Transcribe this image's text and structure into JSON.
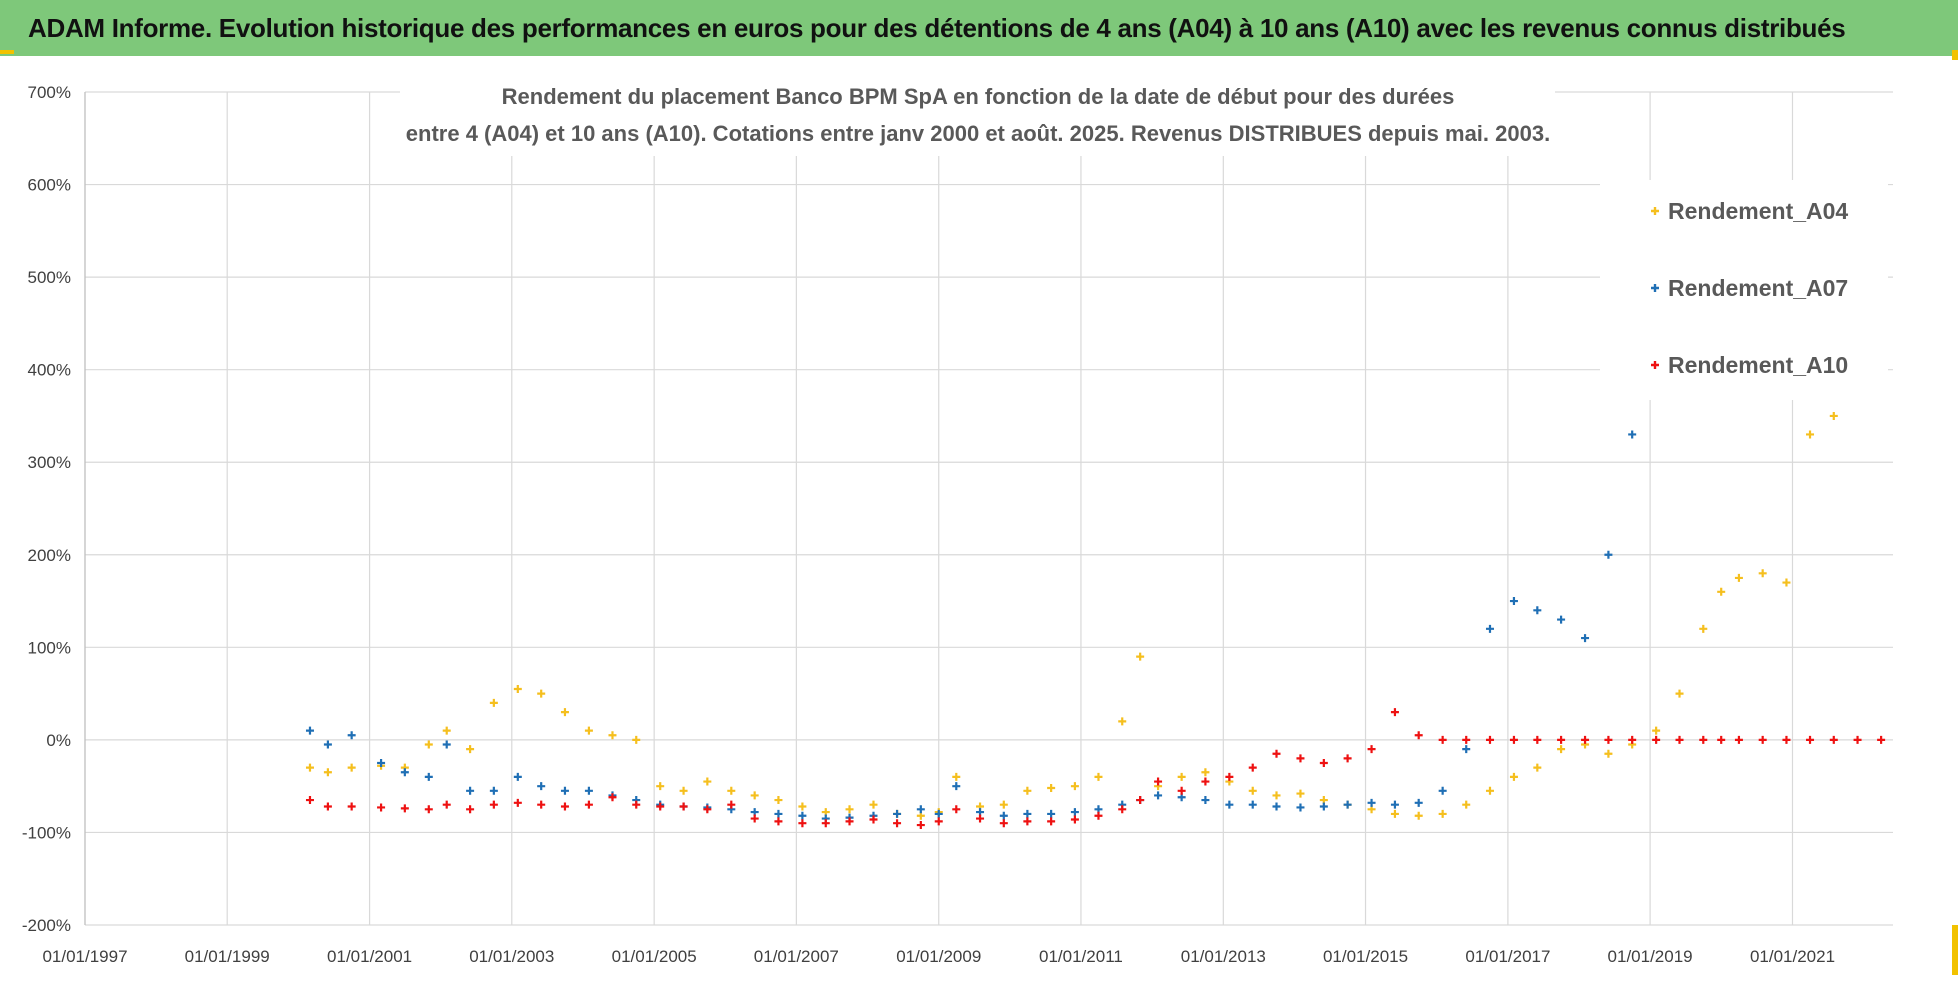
{
  "banner": {
    "title": "ADAM Informe. Evolution historique des performances en euros pour des détentions de 4 ans (A04) à 10 ans (A10) avec les revenus connus distribués"
  },
  "colors": {
    "banner_bg": "#7ec87a",
    "a04": "#f5bf1e",
    "a07": "#1f6fb5",
    "a10": "#ee1111",
    "grid": "#d9d9d9"
  },
  "chart_data": {
    "type": "scatter",
    "title_lines": [
      "Rendement du placement Banco BPM SpA en fonction de la date de début pour des durées",
      "entre 4 (A04) et 10 ans (A10).  Cotations entre janv 2000 et août. 2025. Revenus DISTRIBUES depuis mai. 2003."
    ],
    "xlabel": "",
    "ylabel": "",
    "x_ticks": [
      "01/01/1997",
      "01/01/1999",
      "01/01/2001",
      "01/01/2003",
      "01/01/2005",
      "01/01/2007",
      "01/01/2009",
      "01/01/2011",
      "01/01/2013",
      "01/01/2015",
      "01/01/2017",
      "01/01/2019",
      "01/01/2021"
    ],
    "xlim": [
      "1997-01-01",
      "2022-06-01"
    ],
    "y_ticks": [
      "700%",
      "600%",
      "500%",
      "400%",
      "300%",
      "200%",
      "100%",
      "0%",
      "-100%",
      "-200%"
    ],
    "ylim": [
      -200,
      700
    ],
    "grid": "vertical and horizontal",
    "legend_position": "right",
    "series": [
      {
        "name": "Rendement_A04",
        "color": "#f5bf1e",
        "x": [
          "2000-03",
          "2000-06",
          "2000-10",
          "2001-03",
          "2001-07",
          "2001-11",
          "2002-02",
          "2002-06",
          "2002-10",
          "2003-02",
          "2003-06",
          "2003-10",
          "2004-02",
          "2004-06",
          "2004-10",
          "2005-02",
          "2005-06",
          "2005-10",
          "2006-02",
          "2006-06",
          "2006-10",
          "2007-02",
          "2007-06",
          "2007-10",
          "2008-02",
          "2008-06",
          "2008-10",
          "2009-01",
          "2009-04",
          "2009-08",
          "2009-12",
          "2010-04",
          "2010-08",
          "2010-12",
          "2011-04",
          "2011-08",
          "2011-11",
          "2012-02",
          "2012-06",
          "2012-10",
          "2013-02",
          "2013-06",
          "2013-10",
          "2014-02",
          "2014-06",
          "2014-10",
          "2015-02",
          "2015-06",
          "2015-10",
          "2016-02",
          "2016-06",
          "2016-10",
          "2017-02",
          "2017-06",
          "2017-10",
          "2018-02",
          "2018-06",
          "2018-10",
          "2019-02",
          "2019-06",
          "2019-10",
          "2020-01",
          "2020-04",
          "2020-08",
          "2020-12",
          "2021-04",
          "2021-08"
        ],
        "y": [
          -30,
          -35,
          -30,
          -28,
          -30,
          -5,
          10,
          -10,
          40,
          55,
          50,
          30,
          10,
          5,
          0,
          -50,
          -55,
          -45,
          -55,
          -60,
          -65,
          -72,
          -78,
          -75,
          -70,
          -80,
          -82,
          -78,
          -40,
          -72,
          -70,
          -55,
          -52,
          -50,
          -40,
          20,
          90,
          -50,
          -40,
          -35,
          -45,
          -55,
          -60,
          -58,
          -65,
          -70,
          -75,
          -80,
          -82,
          -80,
          -70,
          -55,
          -40,
          -30,
          -10,
          -5,
          -15,
          -5,
          10,
          50,
          120,
          160,
          175,
          180,
          170,
          330,
          350
        ]
      },
      {
        "name": "Rendement_A07",
        "color": "#1f6fb5",
        "x": [
          "2000-03",
          "2000-06",
          "2000-10",
          "2001-03",
          "2001-07",
          "2001-11",
          "2002-02",
          "2002-06",
          "2002-10",
          "2003-02",
          "2003-06",
          "2003-10",
          "2004-02",
          "2004-06",
          "2004-10",
          "2005-02",
          "2005-06",
          "2005-10",
          "2006-02",
          "2006-06",
          "2006-10",
          "2007-02",
          "2007-06",
          "2007-10",
          "2008-02",
          "2008-06",
          "2008-10",
          "2009-01",
          "2009-04",
          "2009-08",
          "2009-12",
          "2010-04",
          "2010-08",
          "2010-12",
          "2011-04",
          "2011-08",
          "2011-11",
          "2012-02",
          "2012-06",
          "2012-10",
          "2013-02",
          "2013-06",
          "2013-10",
          "2014-02",
          "2014-06",
          "2014-10",
          "2015-02",
          "2015-06",
          "2015-10",
          "2016-02",
          "2016-06",
          "2016-10",
          "2017-02",
          "2017-06",
          "2017-10",
          "2018-02",
          "2018-06",
          "2018-10"
        ],
        "y": [
          10,
          -5,
          5,
          -25,
          -35,
          -40,
          -5,
          -55,
          -55,
          -40,
          -50,
          -55,
          -55,
          -60,
          -65,
          -70,
          -72,
          -73,
          -75,
          -78,
          -80,
          -82,
          -85,
          -84,
          -82,
          -80,
          -75,
          -80,
          -50,
          -78,
          -82,
          -80,
          -80,
          -78,
          -75,
          -70,
          -65,
          -60,
          -62,
          -65,
          -70,
          -70,
          -72,
          -73,
          -72,
          -70,
          -68,
          -70,
          -68,
          -55,
          -10,
          120,
          150,
          140,
          130,
          110,
          200,
          330
        ]
      },
      {
        "name": "Rendement_A10",
        "color": "#ee1111",
        "x": [
          "2000-03",
          "2000-06",
          "2000-10",
          "2001-03",
          "2001-07",
          "2001-11",
          "2002-02",
          "2002-06",
          "2002-10",
          "2003-02",
          "2003-06",
          "2003-10",
          "2004-02",
          "2004-06",
          "2004-10",
          "2005-02",
          "2005-06",
          "2005-10",
          "2006-02",
          "2006-06",
          "2006-10",
          "2007-02",
          "2007-06",
          "2007-10",
          "2008-02",
          "2008-06",
          "2008-10",
          "2009-01",
          "2009-04",
          "2009-08",
          "2009-12",
          "2010-04",
          "2010-08",
          "2010-12",
          "2011-04",
          "2011-08",
          "2011-11",
          "2012-02",
          "2012-06",
          "2012-10",
          "2013-02",
          "2013-06",
          "2013-10",
          "2014-02",
          "2014-06",
          "2014-10",
          "2015-02",
          "2015-06",
          "2015-10",
          "2016-02",
          "2016-06",
          "2016-10",
          "2017-02",
          "2017-06",
          "2017-10",
          "2018-02",
          "2018-06",
          "2018-10",
          "2019-02",
          "2019-06",
          "2019-10",
          "2020-01",
          "2020-04",
          "2020-08",
          "2020-12",
          "2021-04",
          "2021-08",
          "2021-12",
          "2022-04"
        ],
        "y": [
          -65,
          -72,
          -72,
          -73,
          -74,
          -75,
          -70,
          -75,
          -70,
          -68,
          -70,
          -72,
          -70,
          -62,
          -70,
          -72,
          -72,
          -75,
          -70,
          -85,
          -88,
          -90,
          -90,
          -88,
          -86,
          -90,
          -92,
          -88,
          -75,
          -85,
          -90,
          -88,
          -88,
          -86,
          -82,
          -75,
          -65,
          -45,
          -55,
          -45,
          -40,
          -30,
          -15,
          -20,
          -25,
          -20,
          -10,
          30,
          5,
          0,
          0,
          0,
          0,
          0,
          0,
          0,
          0,
          0,
          0,
          0,
          0,
          0,
          0,
          0,
          0,
          0,
          0,
          0,
          0
        ]
      }
    ]
  }
}
